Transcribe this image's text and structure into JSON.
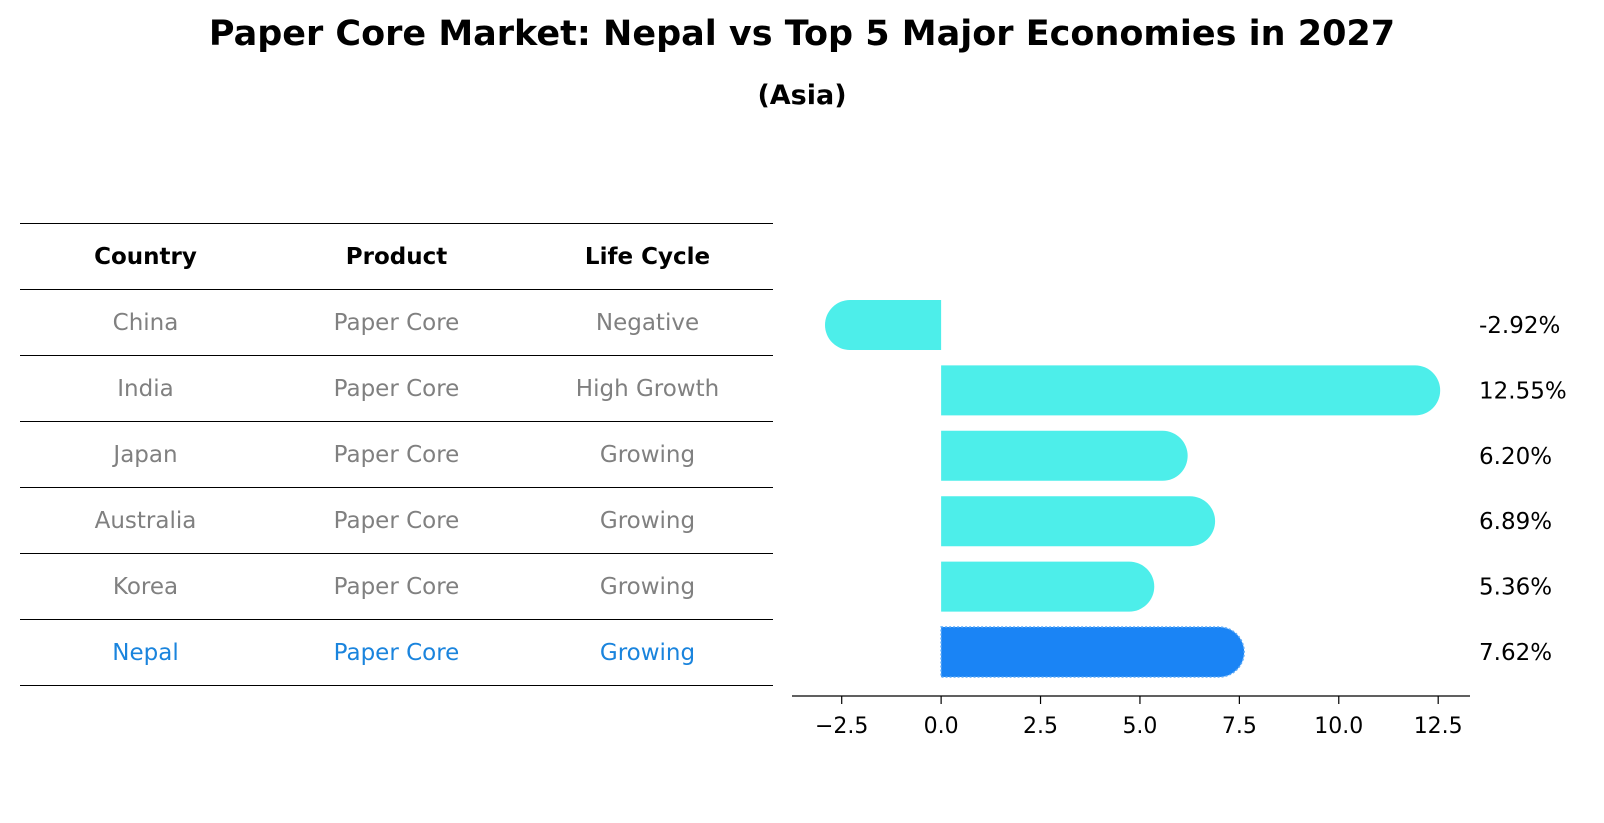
{
  "title": "Paper Core Market: Nepal vs Top 5 Major Economies in 2027",
  "subtitle": "(Asia)",
  "table": {
    "headers": [
      "Country",
      "Product",
      "Life Cycle"
    ],
    "rows": [
      {
        "country": "China",
        "product": "Paper Core",
        "life_cycle": "Negative"
      },
      {
        "country": "India",
        "product": "Paper Core",
        "life_cycle": "High Growth"
      },
      {
        "country": "Japan",
        "product": "Paper Core",
        "life_cycle": "Growing"
      },
      {
        "country": "Australia",
        "product": "Paper Core",
        "life_cycle": "Growing"
      },
      {
        "country": "Korea",
        "product": "Paper Core",
        "life_cycle": "Growing"
      },
      {
        "country": "Nepal",
        "product": "Paper Core",
        "life_cycle": "Growing"
      }
    ]
  },
  "colors": {
    "bar": "#4deeea",
    "highlight_bar": "#1a84f5",
    "highlight_text": "#1a84dd",
    "muted_text": "#808080"
  },
  "chart_data": {
    "type": "bar",
    "orientation": "horizontal",
    "categories": [
      "China",
      "India",
      "Japan",
      "Australia",
      "Korea",
      "Nepal"
    ],
    "values": [
      -2.92,
      12.55,
      6.2,
      6.89,
      5.36,
      7.62
    ],
    "value_labels": [
      "-2.92%",
      "12.55%",
      "6.20%",
      "6.89%",
      "5.36%",
      "7.62%"
    ],
    "highlight": "Nepal",
    "xlim": [
      -3.75,
      13.3
    ],
    "xticks": [
      -2.5,
      0.0,
      2.5,
      5.0,
      7.5,
      10.0,
      12.5
    ],
    "xtick_labels": [
      "−2.5",
      "0.0",
      "2.5",
      "5.0",
      "7.5",
      "10.0",
      "12.5"
    ],
    "grid": false,
    "xlabel": "",
    "ylabel": ""
  }
}
